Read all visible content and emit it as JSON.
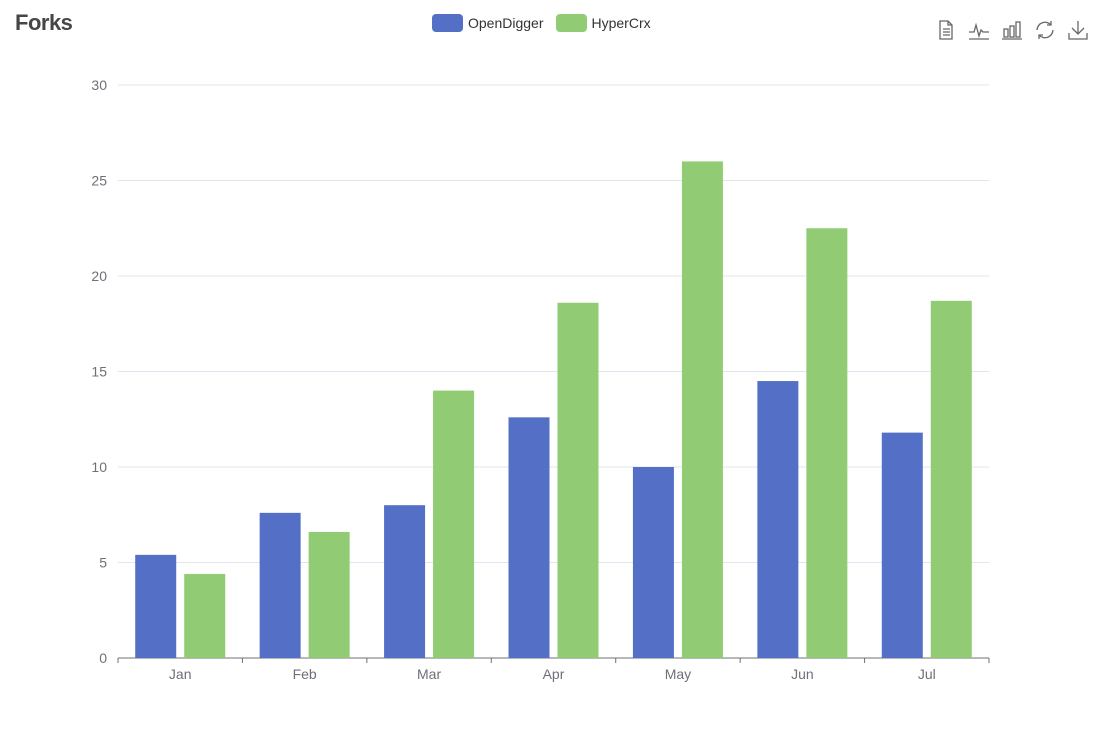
{
  "header": {
    "title": "Forks"
  },
  "legend": [
    {
      "label": "OpenDigger",
      "color": "#5470c6"
    },
    {
      "label": "HyperCrx",
      "color": "#91cc75"
    }
  ],
  "toolbox": [
    {
      "name": "data-view-icon",
      "label": "Data View"
    },
    {
      "name": "line-chart-icon",
      "label": "Switch to Line"
    },
    {
      "name": "bar-chart-icon",
      "label": "Switch to Bar"
    },
    {
      "name": "restore-icon",
      "label": "Restore"
    },
    {
      "name": "download-icon",
      "label": "Save as Image"
    }
  ],
  "chart_data": {
    "type": "bar",
    "title": "Forks",
    "categories": [
      "Jan",
      "Feb",
      "Mar",
      "Apr",
      "May",
      "Jun",
      "Jul"
    ],
    "series": [
      {
        "name": "OpenDigger",
        "color": "#5470c6",
        "values": [
          5.4,
          7.6,
          8.0,
          12.6,
          10.0,
          14.5,
          11.8
        ]
      },
      {
        "name": "HyperCrx",
        "color": "#91cc75",
        "values": [
          4.4,
          6.6,
          14.0,
          18.6,
          26.0,
          22.5,
          18.7
        ]
      }
    ],
    "xlabel": "",
    "ylabel": "",
    "ylim": [
      0,
      30
    ],
    "yticks": [
      0,
      5,
      10,
      15,
      20,
      25,
      30
    ],
    "grid": true,
    "legend_position": "top-center"
  }
}
